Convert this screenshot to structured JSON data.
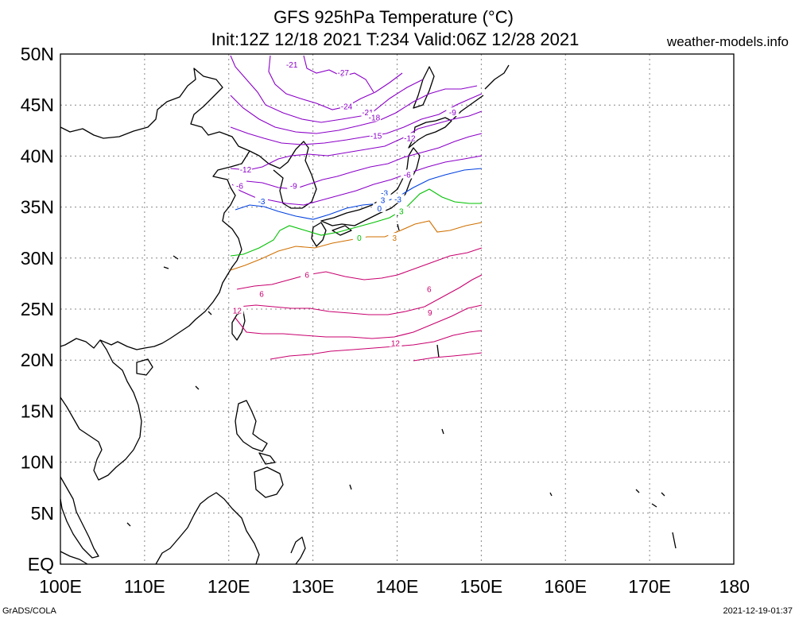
{
  "header": {
    "title_line1": "GFS 925hPa Temperature (°C)",
    "title_line2": "Init:12Z 12/18 2021 T:234 Valid:06Z 12/28 2021",
    "site": "weather-models.info"
  },
  "footer": {
    "left": "GrADS/COLA",
    "right": "2021-12-19-01:37"
  },
  "map": {
    "lon_ticks": [
      "100E",
      "110E",
      "120E",
      "130E",
      "140E",
      "150E",
      "160E",
      "170E",
      "180"
    ],
    "lat_ticks": [
      "50N",
      "45N",
      "40N",
      "35N",
      "30N",
      "25N",
      "20N",
      "15N",
      "10N",
      "5N",
      "EQ"
    ],
    "lon_range": [
      100,
      180
    ],
    "lat_range": [
      0,
      50
    ],
    "data_extent": {
      "lon": [
        120,
        150
      ],
      "lat": [
        20,
        50
      ]
    },
    "gridlines": "dotted",
    "colors": {
      "cold": "#8b00c8",
      "minus3": "#0040e0",
      "zero": "#00c000",
      "plus3": "#d07000",
      "warm": "#c8006e",
      "coast": "#000000"
    },
    "contour_labels": [
      {
        "text": "-27",
        "lon": 133.6,
        "lat": 48.2,
        "color": "cold"
      },
      {
        "text": "-21",
        "lon": 127.5,
        "lat": 49.0,
        "color": "cold"
      },
      {
        "text": "-24",
        "lon": 134.0,
        "lat": 44.9,
        "color": "cold"
      },
      {
        "text": "-21",
        "lon": 136.5,
        "lat": 44.3,
        "color": "cold"
      },
      {
        "text": "-18",
        "lon": 137.3,
        "lat": 43.8,
        "color": "cold"
      },
      {
        "text": "-15",
        "lon": 137.5,
        "lat": 42.0,
        "color": "cold"
      },
      {
        "text": "-12",
        "lon": 141.5,
        "lat": 41.8,
        "color": "cold"
      },
      {
        "text": "-9",
        "lon": 146.6,
        "lat": 44.3,
        "color": "cold"
      },
      {
        "text": "-12",
        "lon": 122.0,
        "lat": 38.7,
        "color": "cold"
      },
      {
        "text": "-9",
        "lon": 127.7,
        "lat": 37.1,
        "color": "cold"
      },
      {
        "text": "-6",
        "lon": 121.3,
        "lat": 37.1,
        "color": "cold"
      },
      {
        "text": "-6",
        "lon": 141.2,
        "lat": 38.2,
        "color": "cold"
      },
      {
        "text": "-3",
        "lon": 123.9,
        "lat": 35.6,
        "color": "minus3"
      },
      {
        "text": "-3",
        "lon": 138.5,
        "lat": 36.4,
        "color": "minus3"
      },
      {
        "text": "3",
        "lon": 138.3,
        "lat": 35.7,
        "color": "minus3"
      },
      {
        "text": "-3",
        "lon": 140.1,
        "lat": 35.8,
        "color": "minus3"
      },
      {
        "text": "0",
        "lon": 137.9,
        "lat": 34.9,
        "color": "minus3"
      },
      {
        "text": "3",
        "lon": 140.5,
        "lat": 34.6,
        "color": "zero"
      },
      {
        "text": "0",
        "lon": 135.5,
        "lat": 32.0,
        "color": "zero"
      },
      {
        "text": "3",
        "lon": 139.7,
        "lat": 32.0,
        "color": "plus3"
      },
      {
        "text": "6",
        "lon": 129.3,
        "lat": 28.4,
        "color": "warm"
      },
      {
        "text": "6",
        "lon": 123.9,
        "lat": 26.5,
        "color": "warm"
      },
      {
        "text": "6",
        "lon": 143.8,
        "lat": 27.0,
        "color": "warm"
      },
      {
        "text": "9",
        "lon": 143.9,
        "lat": 24.7,
        "color": "warm"
      },
      {
        "text": "12",
        "lon": 121.0,
        "lat": 24.9,
        "color": "warm"
      },
      {
        "text": "12",
        "lon": 139.8,
        "lat": 21.7,
        "color": "warm"
      }
    ]
  }
}
